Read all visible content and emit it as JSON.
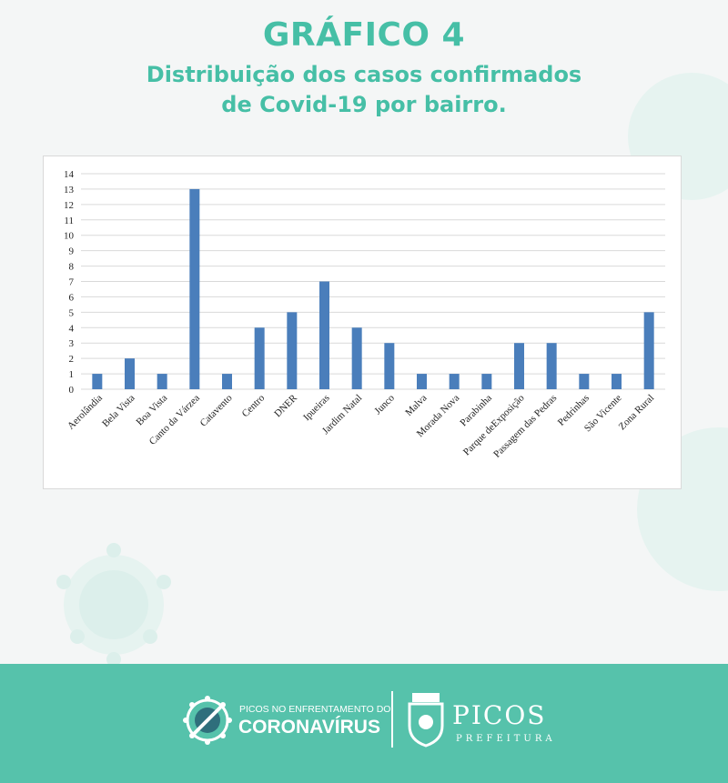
{
  "header": {
    "title": "GRÁFICO 4",
    "subtitle_line1": "Distribuição dos casos confirmados",
    "subtitle_line2": "de Covid-19 por bairro."
  },
  "chart_data": {
    "type": "bar",
    "categories": [
      "Aerolândia",
      "Bela Vista",
      "Boa Vista",
      "Canto da Várzea",
      "Catavento",
      "Centro",
      "DNER",
      "Ipueiras",
      "Jardim Natal",
      "Junco",
      "Malva",
      "Morada Nova",
      "Parabinha",
      "Parque deExposição",
      "Passagem das Pedras",
      "Pedrinhas",
      "São Vicente",
      "Zona Rural"
    ],
    "values": [
      1,
      2,
      1,
      13,
      1,
      4,
      5,
      7,
      4,
      3,
      1,
      1,
      1,
      3,
      3,
      1,
      1,
      5
    ],
    "ylim": [
      0,
      14
    ],
    "yticks": [
      0,
      1,
      2,
      3,
      4,
      5,
      6,
      7,
      8,
      9,
      10,
      11,
      12,
      13,
      14
    ],
    "grid": true,
    "bar_color": "#4a7ebb"
  },
  "footer": {
    "campaign_small": "PICOS NO ENFRENTAMENTO DO",
    "campaign_big": "CORONAVÍRUS",
    "city_name": "PICOS",
    "city_sub": "PREFEITURA"
  },
  "colors": {
    "accent": "#46bfa6",
    "footer_bg": "#56c2ab"
  }
}
